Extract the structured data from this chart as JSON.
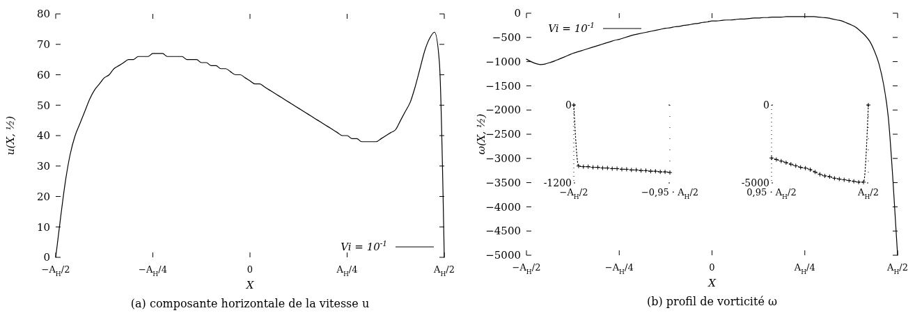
{
  "chart_data": [
    {
      "type": "line",
      "title": "(a) composante horizontale de la vitesse u",
      "xlabel": "X",
      "ylabel": "u(X, ½)",
      "categories": [
        "−A$_{H}$/2",
        null,
        null,
        null,
        null,
        null,
        null,
        null,
        null,
        null,
        null,
        null,
        null,
        null,
        null,
        null,
        null,
        null,
        null,
        null,
        "−A$_{H}$/4",
        null,
        null,
        null,
        null,
        null,
        null,
        null,
        null,
        null,
        null,
        null,
        null,
        null,
        null,
        null,
        null,
        null,
        null,
        null,
        "0",
        null,
        null,
        null,
        null,
        null,
        null,
        null,
        null,
        null,
        null,
        null,
        null,
        null,
        null,
        null,
        null,
        null,
        null,
        null,
        "A$_{H}$/4",
        null,
        null,
        null,
        null,
        null,
        null,
        null,
        null,
        null,
        null,
        null,
        null,
        null,
        null,
        null,
        null,
        null,
        null,
        null,
        "A$_{H}$/2"
      ],
      "ylim": [
        0,
        80
      ],
      "yticks": [
        0,
        10,
        20,
        30,
        40,
        50,
        60,
        70,
        80
      ],
      "legend": "bottom right",
      "series": [
        {
          "name": "Vi = 10$^{-1}$",
          "color": "#000000",
          "values": [
            0,
            13,
            25,
            34,
            40,
            44,
            48,
            52,
            55,
            57,
            59,
            60,
            62,
            63,
            64,
            65,
            65,
            66,
            66,
            66,
            67,
            67,
            67,
            66,
            66,
            66,
            66,
            65,
            65,
            65,
            64,
            64,
            63,
            63,
            62,
            62,
            61,
            60,
            60,
            59,
            58,
            57,
            57,
            56,
            55,
            54,
            53,
            52,
            51,
            50,
            49,
            48,
            47,
            46,
            45,
            44,
            43,
            42,
            41,
            40,
            40,
            39,
            39,
            38,
            38,
            38,
            38,
            39,
            40,
            41,
            42,
            45,
            48,
            51,
            56,
            62,
            68,
            72,
            74,
            64,
            0
          ]
        }
      ]
    },
    {
      "type": "line",
      "title": "(b) profil de vorticité ω",
      "xlabel": "X",
      "ylabel": "ω(X, ½)",
      "categories": [
        "−A$_{H}$/2",
        null,
        null,
        null,
        null,
        null,
        null,
        null,
        null,
        null,
        null,
        null,
        null,
        null,
        null,
        null,
        null,
        null,
        null,
        null,
        "−A$_{H}$/4",
        null,
        null,
        null,
        null,
        null,
        null,
        null,
        null,
        null,
        null,
        null,
        null,
        null,
        null,
        null,
        null,
        null,
        null,
        null,
        "0",
        null,
        null,
        null,
        null,
        null,
        null,
        null,
        null,
        null,
        null,
        null,
        null,
        null,
        null,
        null,
        null,
        null,
        null,
        null,
        "A$_{H}$/4",
        null,
        null,
        null,
        null,
        null,
        null,
        null,
        null,
        null,
        null,
        null,
        null,
        null,
        null,
        null,
        null,
        null,
        null,
        null,
        "A$_{H}$/2"
      ],
      "ylim": [
        -5000,
        0
      ],
      "yticks": [
        -5000,
        -4500,
        -4000,
        -3500,
        -3000,
        -2500,
        -2000,
        -1500,
        -1000,
        -500,
        0
      ],
      "legend": "top left",
      "series": [
        {
          "name": "Vi = 10$^{-1}$",
          "color": "#000000",
          "values": [
            -950,
            -1000,
            -1040,
            -1060,
            -1050,
            -1020,
            -990,
            -950,
            -910,
            -870,
            -830,
            -800,
            -770,
            -740,
            -710,
            -680,
            -650,
            -620,
            -590,
            -560,
            -540,
            -510,
            -480,
            -450,
            -430,
            -410,
            -390,
            -370,
            -350,
            -330,
            -310,
            -300,
            -280,
            -270,
            -250,
            -240,
            -220,
            -210,
            -190,
            -180,
            -160,
            -160,
            -150,
            -140,
            -140,
            -130,
            -120,
            -120,
            -110,
            -100,
            -100,
            -90,
            -90,
            -80,
            -80,
            -80,
            -70,
            -70,
            -70,
            -70,
            -70,
            -70,
            -70,
            -80,
            -90,
            -100,
            -120,
            -140,
            -160,
            -200,
            -240,
            -290,
            -370,
            -460,
            -580,
            -780,
            -1050,
            -1480,
            -2150,
            -3450,
            -5000
          ]
        }
      ]
    },
    {
      "type": "line",
      "categories": [
        "−A$_{H}$/2",
        null,
        null,
        null,
        null,
        null,
        null,
        null,
        null,
        null,
        null,
        null,
        null,
        null,
        null,
        null,
        null,
        null,
        null,
        null,
        "−0,95 · A$_{H}$/2"
      ],
      "ylim": [
        -1200,
        0
      ],
      "yticks": [
        {
          "value": -1200,
          "label": "-1200"
        },
        0
      ],
      "marker": "cross",
      "line_style": "dotted",
      "series": [
        {
          "color": "#000000",
          "values": [
            0,
            -940,
            -950,
            -950,
            -960,
            -960,
            -970,
            -970,
            -980,
            -980,
            -990,
            -990,
            -1000,
            -1000,
            -1010,
            -1010,
            -1020,
            -1020,
            -1030,
            -1030,
            -1040
          ]
        }
      ]
    },
    {
      "type": "line",
      "categories": [
        "0,95 · A$_{H}$/2",
        null,
        null,
        null,
        null,
        null,
        null,
        null,
        null,
        null,
        null,
        null,
        null,
        null,
        null,
        null,
        null,
        null,
        null,
        null,
        "A$_{H}$/2"
      ],
      "ylim": [
        -5000,
        0
      ],
      "yticks": [
        {
          "value": -5000,
          "label": "-5000"
        },
        0
      ],
      "marker": "cross",
      "line_style": "dotted",
      "series": [
        {
          "color": "#000000",
          "values": [
            -3400,
            -3500,
            -3600,
            -3700,
            -3800,
            -3900,
            -4000,
            -4050,
            -4150,
            -4300,
            -4450,
            -4550,
            -4600,
            -4700,
            -4750,
            -4800,
            -4850,
            -4900,
            -4950,
            -4950,
            0
          ]
        }
      ]
    }
  ]
}
